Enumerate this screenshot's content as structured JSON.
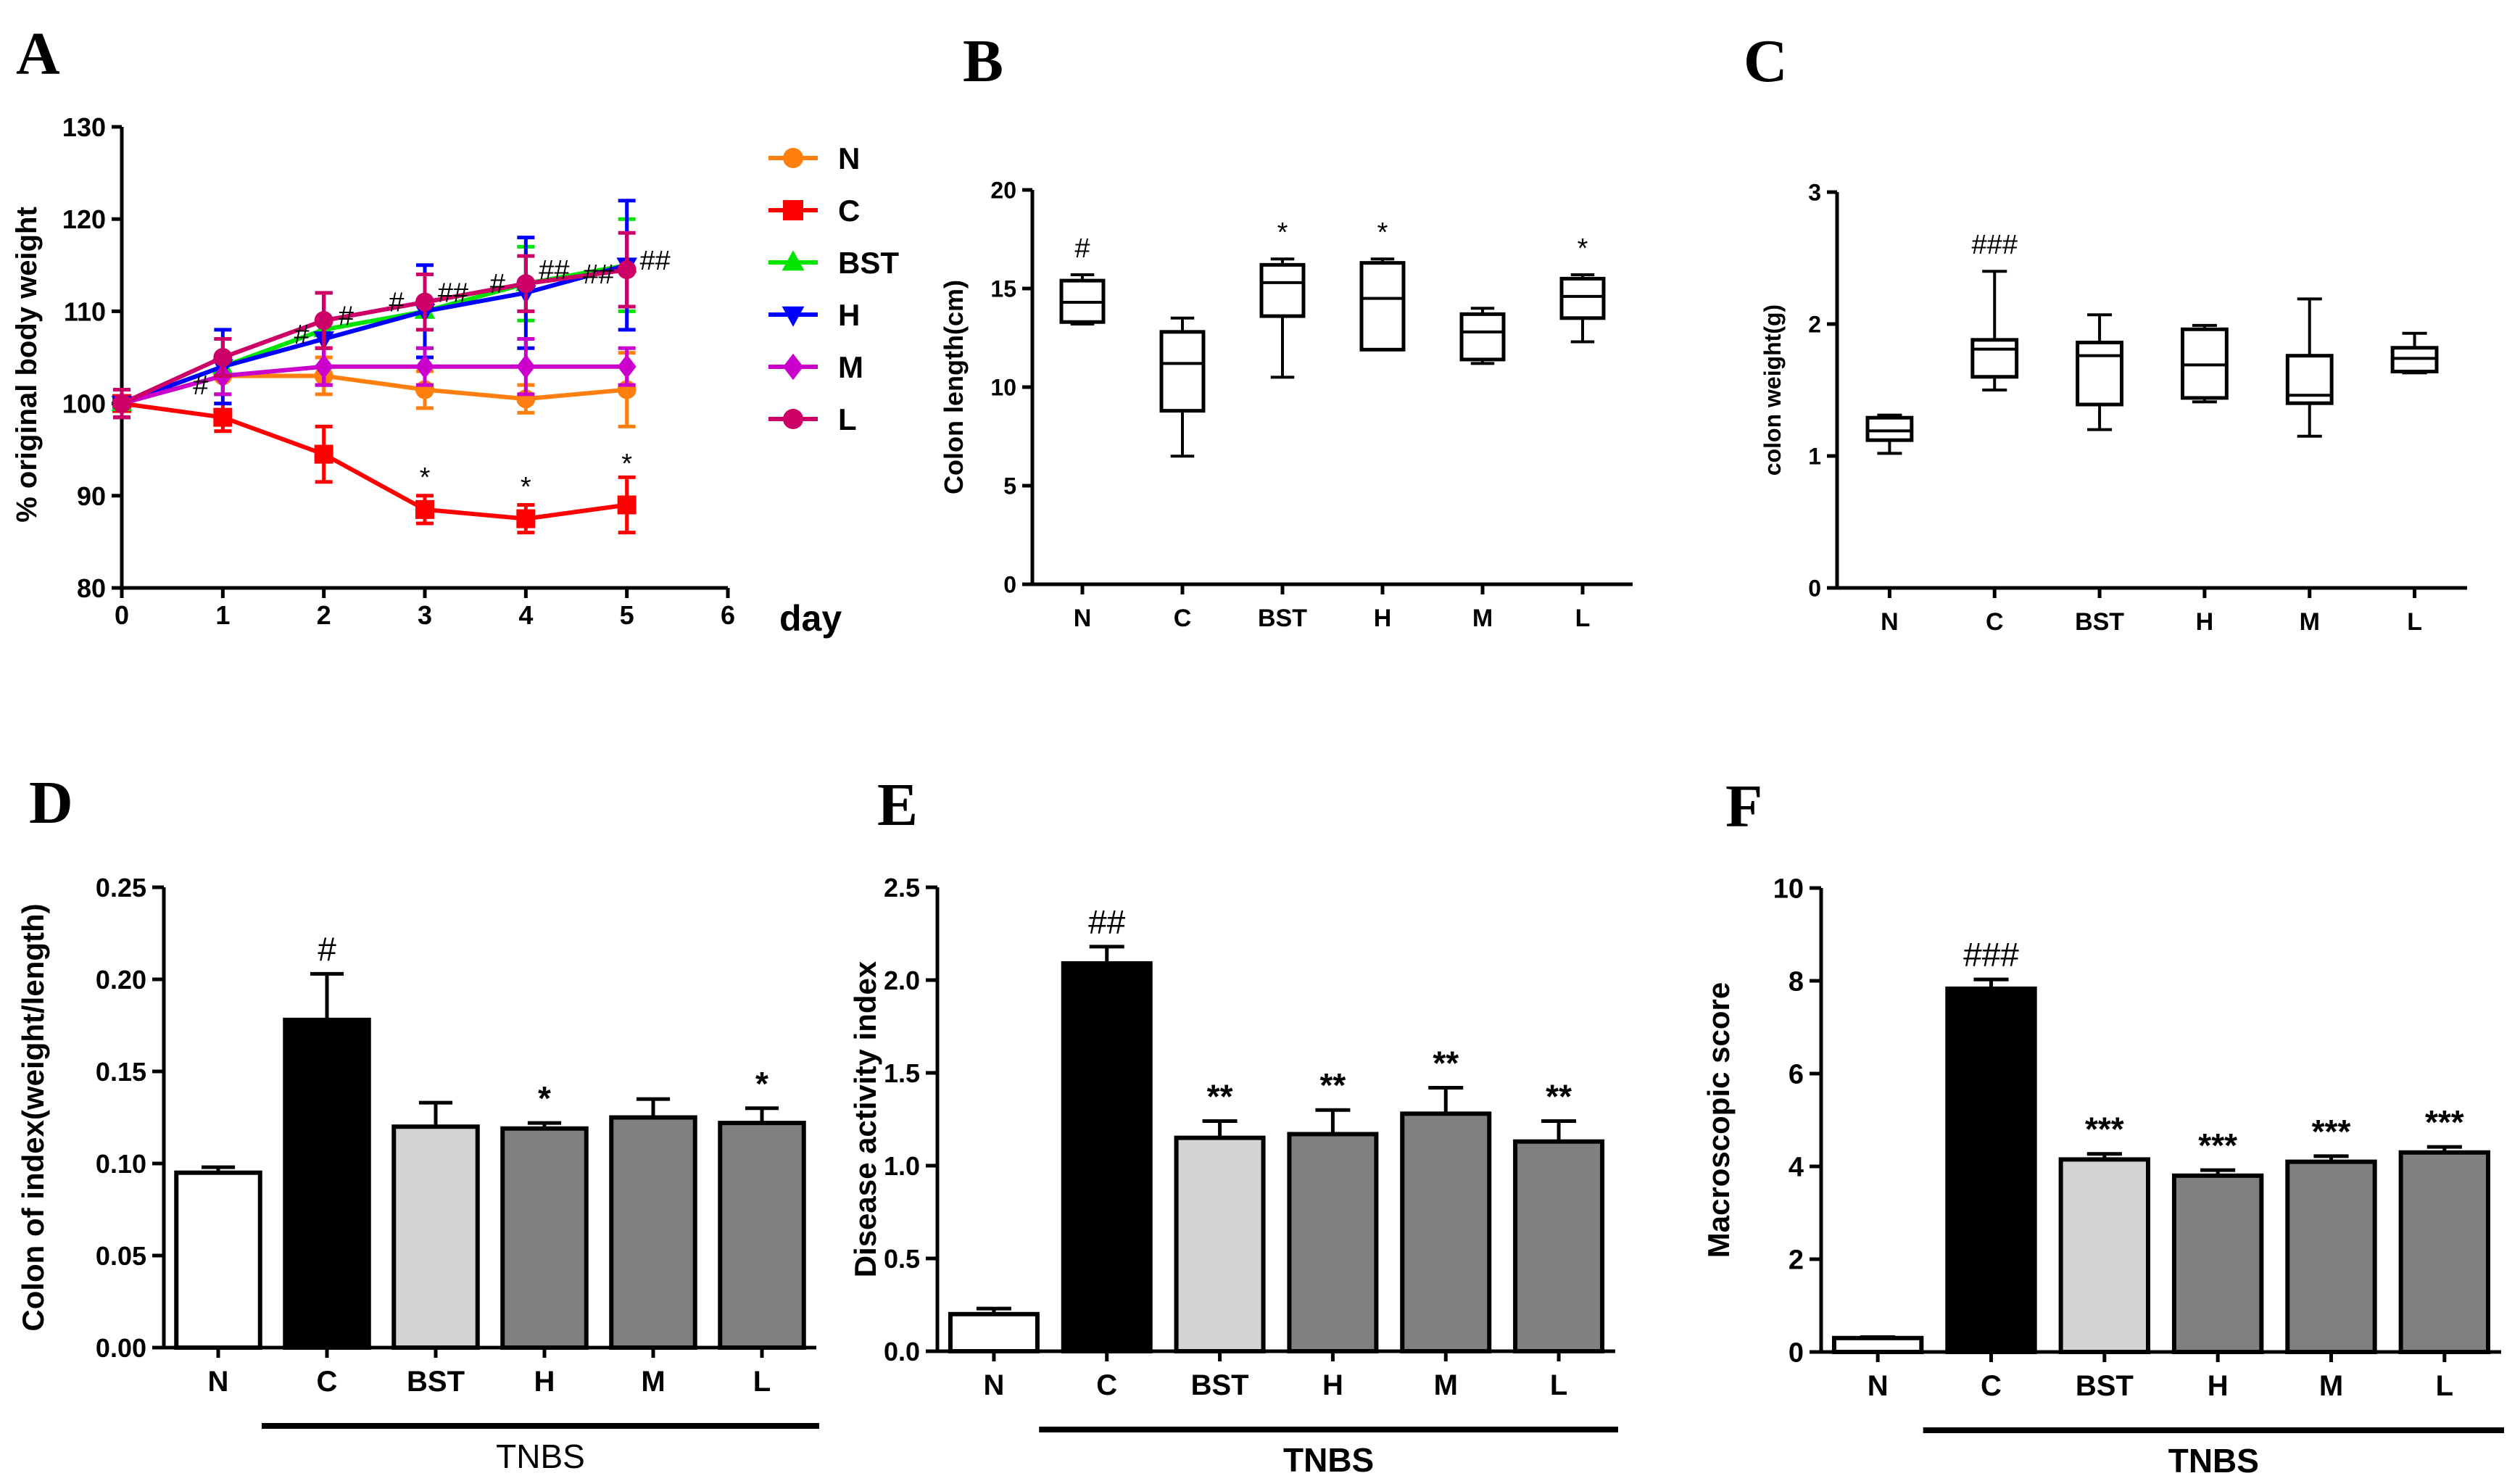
{
  "figure": "Six-panel figure of TNBS colitis outcomes across treatment groups",
  "colors": {
    "N": "#ff7f0e",
    "C": "#ff0000",
    "BST": "#00e400",
    "H": "#0000ff",
    "M": "#cc00cc",
    "L": "#cc0066",
    "bar_N": "#ffffff",
    "bar_C": "#000000",
    "bar_BST": "#d3d3d3",
    "bar_dose": "#808080"
  },
  "chart_data": [
    {
      "panel": "A",
      "type": "line",
      "title": "",
      "xlabel": "day",
      "ylabel": "% original body weight",
      "xlim": [
        0,
        6
      ],
      "ylim": [
        80,
        130
      ],
      "xticks": [
        "0",
        "1",
        "2",
        "3",
        "4",
        "5",
        "6"
      ],
      "yticks": [
        "80",
        "90",
        "100",
        "110",
        "120",
        "130"
      ],
      "x": [
        0,
        1,
        2,
        3,
        4,
        5
      ],
      "series": [
        {
          "name": "N",
          "marker": "circle",
          "values": [
            100,
            103,
            103,
            101.5,
            100.5,
            101.5
          ],
          "err": [
            1.5,
            2,
            2,
            2,
            1.5,
            4
          ]
        },
        {
          "name": "C",
          "marker": "square",
          "values": [
            100,
            98.5,
            94.5,
            88.5,
            87.5,
            89
          ],
          "err": [
            1.5,
            1.5,
            3,
            1.5,
            1.5,
            3
          ]
        },
        {
          "name": "BST",
          "marker": "triangle-up",
          "values": [
            100,
            104,
            108,
            110,
            113,
            115
          ],
          "err": [
            1.5,
            3,
            4,
            4,
            4,
            5
          ]
        },
        {
          "name": "H",
          "marker": "triangle-down",
          "values": [
            100,
            104,
            107,
            110,
            112,
            115
          ],
          "err": [
            1.5,
            4,
            5,
            5,
            6,
            7
          ]
        },
        {
          "name": "M",
          "marker": "diamond",
          "values": [
            100,
            103,
            104,
            104,
            104,
            104
          ],
          "err": [
            1.5,
            2,
            2,
            2,
            3,
            2
          ]
        },
        {
          "name": "L",
          "marker": "circle",
          "values": [
            100,
            105,
            109,
            111,
            113,
            114.5
          ],
          "err": [
            1.5,
            2,
            3,
            3,
            3,
            4
          ]
        }
      ],
      "annotations": [
        {
          "text": "#",
          "x": 0.78,
          "y": 101
        },
        {
          "text": "#",
          "x": 1.78,
          "y": 106.5
        },
        {
          "text": "#",
          "x": 2.22,
          "y": 108.5
        },
        {
          "text": "#",
          "x": 2.72,
          "y": 110
        },
        {
          "text": "##",
          "x": 3.28,
          "y": 111
        },
        {
          "text": "#",
          "x": 3.72,
          "y": 112
        },
        {
          "text": "##",
          "x": 4.28,
          "y": 113.5
        },
        {
          "text": "##",
          "x": 4.72,
          "y": 113
        },
        {
          "text": "##",
          "x": 5.28,
          "y": 114.5
        },
        {
          "text": "*",
          "x": 3,
          "y": 91
        },
        {
          "text": "*",
          "x": 4,
          "y": 90
        },
        {
          "text": "*",
          "x": 5,
          "y": 92.5
        }
      ]
    },
    {
      "panel": "B",
      "type": "box",
      "title": "",
      "xlabel": "",
      "ylabel": "Colon length(cm)",
      "ylim": [
        0,
        20
      ],
      "yticks": [
        "0",
        "5",
        "10",
        "15",
        "20"
      ],
      "categories": [
        "N",
        "C",
        "BST",
        "H",
        "M",
        "L"
      ],
      "boxes": [
        {
          "min": 13.2,
          "q1": 13.3,
          "median": 14.3,
          "q3": 15.4,
          "max": 15.7
        },
        {
          "min": 6.5,
          "q1": 8.8,
          "median": 11.2,
          "q3": 12.8,
          "max": 13.5
        },
        {
          "min": 10.5,
          "q1": 13.6,
          "median": 15.3,
          "q3": 16.2,
          "max": 16.5
        },
        {
          "min": 11.9,
          "q1": 11.9,
          "median": 14.5,
          "q3": 16.3,
          "max": 16.5
        },
        {
          "min": 11.2,
          "q1": 11.4,
          "median": 12.8,
          "q3": 13.7,
          "max": 14.0
        },
        {
          "min": 12.3,
          "q1": 13.5,
          "median": 14.6,
          "q3": 15.5,
          "max": 15.7
        }
      ],
      "annotations": [
        "#",
        "",
        "*",
        "*",
        "",
        "*"
      ]
    },
    {
      "panel": "C",
      "type": "box",
      "title": "",
      "xlabel": "",
      "ylabel": "colon weight(g)",
      "ylim": [
        0,
        3
      ],
      "yticks": [
        "0",
        "1",
        "2",
        "3"
      ],
      "categories": [
        "N",
        "C",
        "BST",
        "H",
        "M",
        "L"
      ],
      "boxes": [
        {
          "min": 1.02,
          "q1": 1.12,
          "median": 1.19,
          "q3": 1.29,
          "max": 1.31
        },
        {
          "min": 1.5,
          "q1": 1.6,
          "median": 1.81,
          "q3": 1.88,
          "max": 2.4
        },
        {
          "min": 1.2,
          "q1": 1.39,
          "median": 1.76,
          "q3": 1.86,
          "max": 2.07
        },
        {
          "min": 1.41,
          "q1": 1.44,
          "median": 1.69,
          "q3": 1.96,
          "max": 1.99
        },
        {
          "min": 1.15,
          "q1": 1.4,
          "median": 1.46,
          "q3": 1.76,
          "max": 2.19
        },
        {
          "min": 1.63,
          "q1": 1.64,
          "median": 1.74,
          "q3": 1.82,
          "max": 1.93
        }
      ],
      "annotations": [
        "",
        "###",
        "",
        "",
        "",
        ""
      ]
    },
    {
      "panel": "D",
      "type": "bar",
      "title": "",
      "xlabel": "",
      "ylabel": "Colon of index(weight/length)",
      "ylim": [
        0,
        0.25
      ],
      "yticks": [
        "0.00",
        "0.05",
        "0.10",
        "0.15",
        "0.20",
        "0.25"
      ],
      "categories": [
        "N",
        "C",
        "BST",
        "H",
        "M",
        "L"
      ],
      "values": [
        0.095,
        0.178,
        0.12,
        0.119,
        0.125,
        0.122
      ],
      "err": [
        0.003,
        0.025,
        0.013,
        0.003,
        0.01,
        0.008
      ],
      "annotations": [
        "",
        "#",
        "",
        "*",
        "",
        "*"
      ],
      "group_label": "TNBS"
    },
    {
      "panel": "E",
      "type": "bar",
      "title": "",
      "xlabel": "",
      "ylabel": "Disease activity index",
      "ylim": [
        0,
        2.5
      ],
      "yticks": [
        "0.0",
        "0.5",
        "1.0",
        "1.5",
        "2.0",
        "2.5"
      ],
      "categories": [
        "N",
        "C",
        "BST",
        "H",
        "M",
        "L"
      ],
      "values": [
        0.2,
        2.09,
        1.15,
        1.17,
        1.28,
        1.13
      ],
      "err": [
        0.03,
        0.09,
        0.09,
        0.13,
        0.14,
        0.11
      ],
      "annotations": [
        "",
        "##",
        "**",
        "**",
        "**",
        "**"
      ],
      "group_label": "TNBS"
    },
    {
      "panel": "F",
      "type": "bar",
      "title": "",
      "xlabel": "",
      "ylabel": "Macroscopic score",
      "ylim": [
        0,
        10
      ],
      "yticks": [
        "0",
        "2",
        "4",
        "6",
        "8",
        "10"
      ],
      "categories": [
        "N",
        "C",
        "BST",
        "H",
        "M",
        "L"
      ],
      "values": [
        0.3,
        7.83,
        4.15,
        3.8,
        4.1,
        4.3
      ],
      "err": [
        0.02,
        0.2,
        0.12,
        0.12,
        0.12,
        0.12
      ],
      "annotations": [
        "",
        "###",
        "***",
        "***",
        "***",
        "***"
      ],
      "group_label": "TNBS"
    }
  ]
}
